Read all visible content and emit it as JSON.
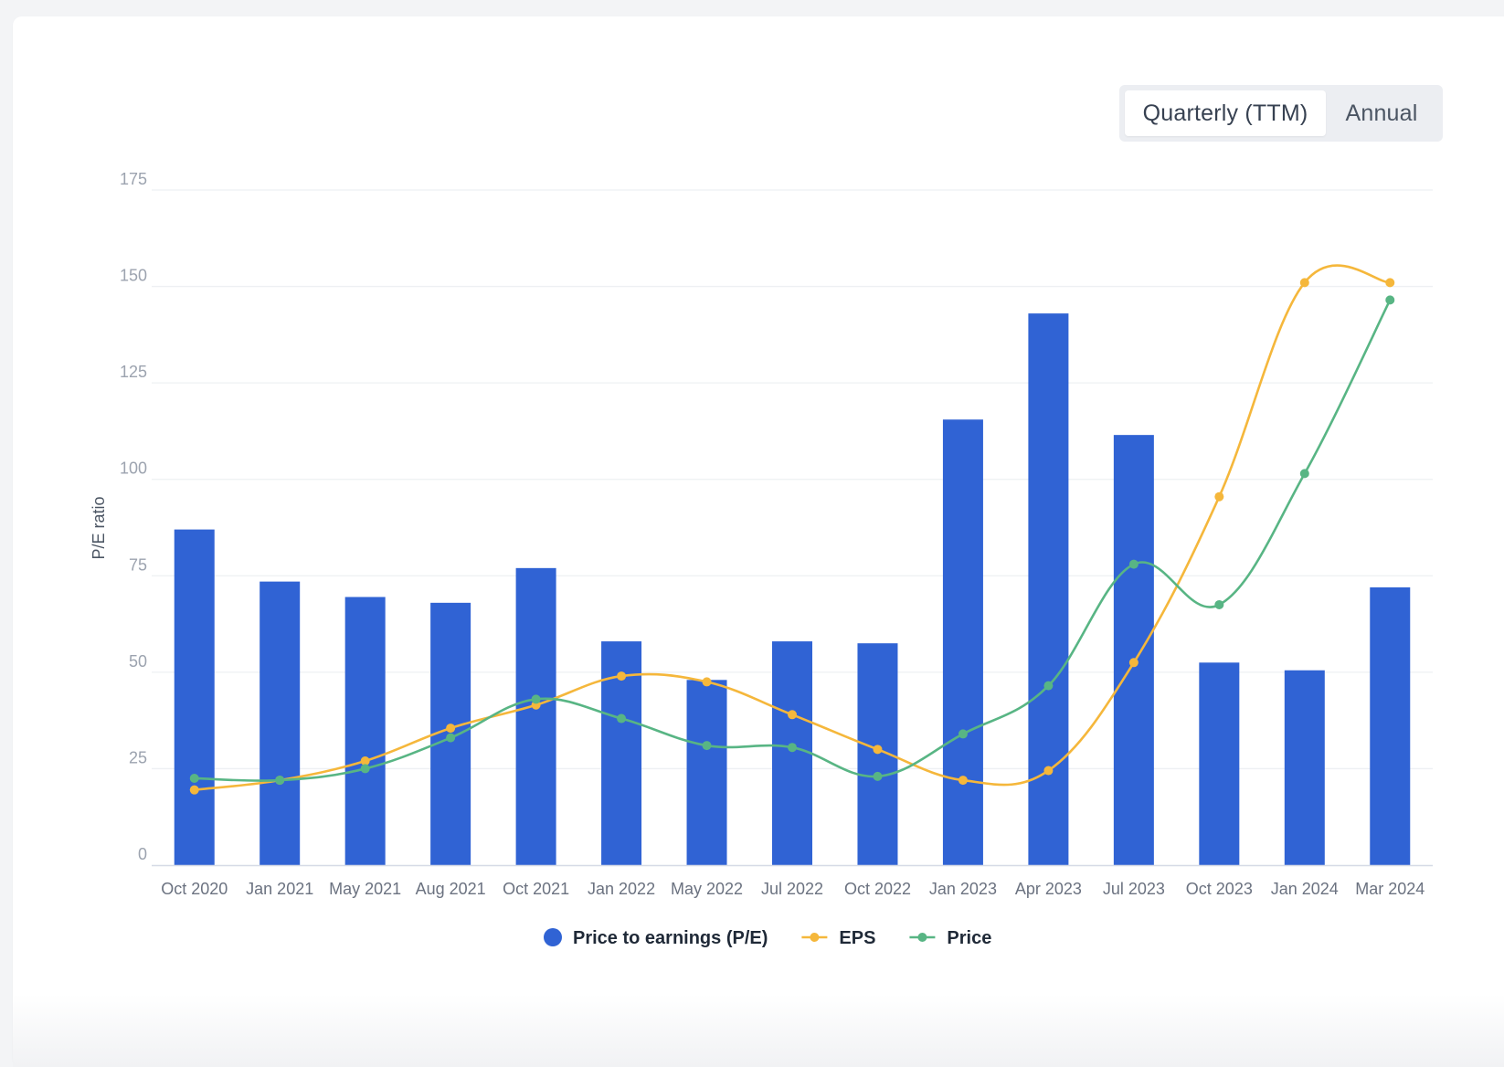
{
  "toggle": {
    "quarterly_label": "Quarterly (TTM)",
    "annual_label": "Annual"
  },
  "chart_data": {
    "type": "bar",
    "categories": [
      "Oct 2020",
      "Jan 2021",
      "May 2021",
      "Aug 2021",
      "Oct 2021",
      "Jan 2022",
      "May 2022",
      "Jul 2022",
      "Oct 2022",
      "Jan 2023",
      "Apr 2023",
      "Jul 2023",
      "Oct 2023",
      "Jan 2024",
      "Mar 2024"
    ],
    "ylabel": "P/E ratio",
    "ylim": [
      0,
      175
    ],
    "yticks": [
      0,
      25,
      50,
      75,
      100,
      125,
      150,
      175
    ],
    "grid": true,
    "legend_placement": "bottom",
    "series": [
      {
        "name": "Price to earnings (P/E)",
        "type": "bar",
        "color": "#3063d4",
        "values": [
          87,
          73.5,
          69.5,
          68,
          77,
          58,
          48,
          58,
          57.5,
          115.5,
          143,
          111.5,
          52.5,
          50.5,
          72
        ]
      },
      {
        "name": "EPS",
        "type": "line",
        "color": "#f5b73b",
        "values": [
          19.5,
          22,
          27,
          35.5,
          41.5,
          49,
          47.5,
          39,
          30,
          22,
          24.5,
          52.5,
          95.5,
          151,
          151
        ]
      },
      {
        "name": "Price",
        "type": "line",
        "color": "#58b584",
        "values": [
          22.5,
          22,
          25,
          33,
          43,
          38,
          31,
          30.5,
          23,
          34,
          46.5,
          78,
          67.5,
          101.5,
          146.5
        ]
      }
    ]
  }
}
